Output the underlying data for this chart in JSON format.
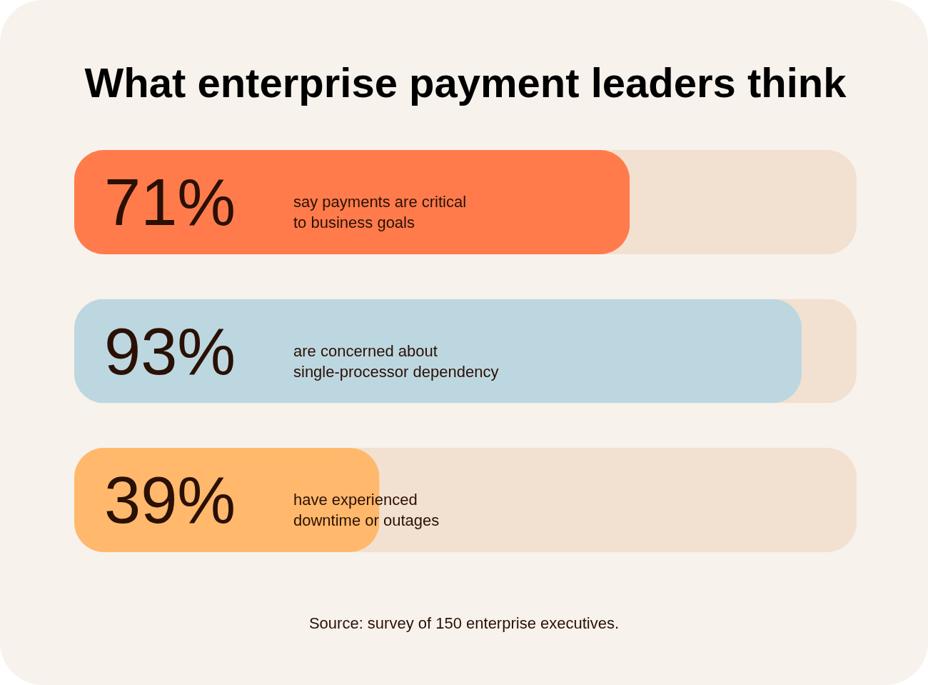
{
  "chart_data": {
    "type": "bar",
    "orientation": "horizontal",
    "title": "What enterprise payment leaders think",
    "categories": [
      "say payments are critical\nto business goals",
      "are concerned about\nsingle-processor dependency",
      "have experienced\ndowntime or outages"
    ],
    "values": [
      71,
      93,
      39
    ],
    "value_labels": [
      "71%",
      "93%",
      "39%"
    ],
    "colors": [
      "#ff7b4c",
      "#bdd7e0",
      "#ffb86c"
    ],
    "xlim": [
      0,
      100
    ],
    "annotations": [
      "Source: survey of 150 enterprise executives."
    ]
  }
}
